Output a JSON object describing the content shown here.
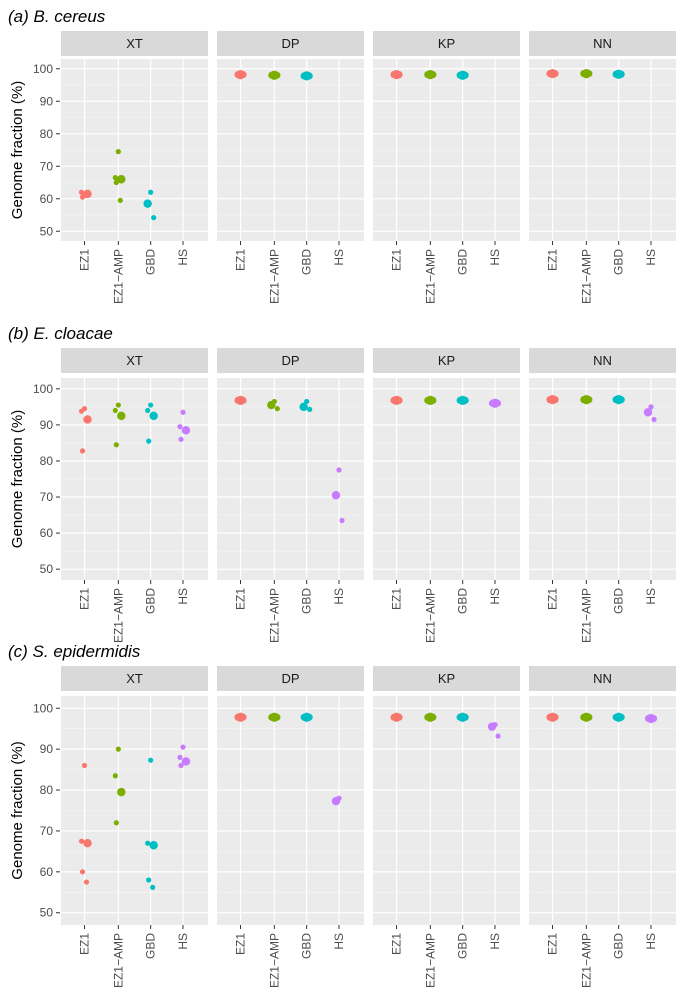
{
  "chart_data": {
    "type": "scatter",
    "ylabel": "Genome fraction (%)",
    "yticks": [
      50,
      60,
      70,
      80,
      90,
      100
    ],
    "ylim": [
      47,
      103
    ],
    "categories": [
      "EZ1",
      "EZ1−AMP",
      "GBD",
      "HS"
    ],
    "facets": [
      "XT",
      "DP",
      "KP",
      "NN"
    ],
    "colors": {
      "EZ1": "#F8766D",
      "EZ1−AMP": "#7CAE00",
      "GBD": "#00BFC4",
      "HS": "#C77CFF"
    },
    "panels": [
      {
        "title": "(a) B. cereus",
        "points": {
          "XT": {
            "EZ1": [
              61,
              62,
              61.5,
              60.5
            ],
            "EZ1−AMP": [
              74.5,
              66.5,
              66,
              65,
              59.5
            ],
            "GBD": [
              62,
              58.5,
              54.2
            ],
            "HS": []
          },
          "DP": {
            "EZ1": [
              98.2
            ],
            "EZ1−AMP": [
              98
            ],
            "GBD": [
              97.8
            ],
            "HS": []
          },
          "KP": {
            "EZ1": [
              98.2
            ],
            "EZ1−AMP": [
              98.2
            ],
            "GBD": [
              98
            ],
            "HS": []
          },
          "NN": {
            "EZ1": [
              98.5
            ],
            "EZ1−AMP": [
              98.5
            ],
            "GBD": [
              98.3
            ],
            "HS": []
          }
        }
      },
      {
        "title": "(b) E. cloacae",
        "points": {
          "XT": {
            "EZ1": [
              94.5,
              93.8,
              91.5,
              82.8
            ],
            "EZ1−AMP": [
              95.5,
              94,
              92.5,
              84.5
            ],
            "GBD": [
              95.5,
              94,
              92.5,
              85.5
            ],
            "HS": [
              93.5,
              89.5,
              88.5,
              86
            ]
          },
          "DP": {
            "EZ1": [
              96.8
            ],
            "EZ1−AMP": [
              96.5,
              95.5,
              94.5
            ],
            "GBD": [
              96.5,
              95,
              94.3
            ],
            "HS": [
              77.5,
              70.5,
              63.5
            ]
          },
          "KP": {
            "EZ1": [
              96.8
            ],
            "EZ1−AMP": [
              96.8
            ],
            "GBD": [
              96.8
            ],
            "HS": [
              96
            ]
          },
          "NN": {
            "EZ1": [
              97
            ],
            "EZ1−AMP": [
              97
            ],
            "GBD": [
              97
            ],
            "HS": [
              95,
              93.5,
              91.5
            ]
          }
        }
      },
      {
        "title": "(c) S. epidermidis",
        "points": {
          "XT": {
            "EZ1": [
              86,
              67.5,
              67,
              60,
              57.5
            ],
            "EZ1−AMP": [
              90,
              83.5,
              79.5,
              72
            ],
            "GBD": [
              87.3,
              67,
              66.5,
              58,
              56.2
            ],
            "HS": [
              90.5,
              88,
              87,
              86
            ]
          },
          "DP": {
            "EZ1": [
              97.8
            ],
            "EZ1−AMP": [
              97.8
            ],
            "GBD": [
              97.8
            ],
            "HS": [
              78,
              77.3
            ]
          },
          "KP": {
            "EZ1": [
              97.8
            ],
            "EZ1−AMP": [
              97.8
            ],
            "GBD": [
              97.8
            ],
            "HS": [
              96,
              95.5,
              93.2
            ]
          },
          "NN": {
            "EZ1": [
              97.8
            ],
            "EZ1−AMP": [
              97.8
            ],
            "GBD": [
              97.8
            ],
            "HS": [
              97.5
            ]
          }
        }
      }
    ]
  }
}
